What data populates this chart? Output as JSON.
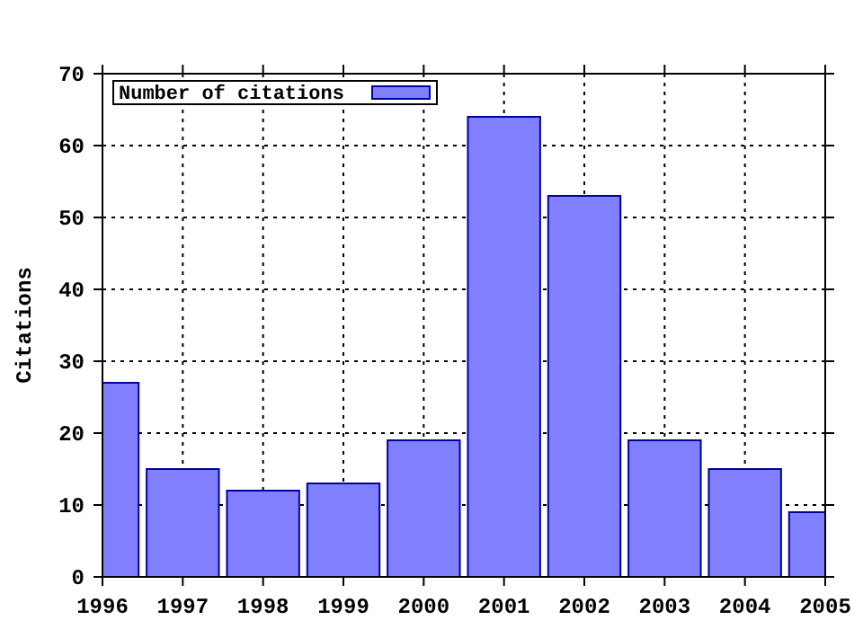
{
  "chart_data": {
    "type": "bar",
    "ylabel": "Citations",
    "x": [
      1996,
      1997,
      1998,
      1999,
      2000,
      2001,
      2002,
      2003,
      2004,
      2005
    ],
    "series": [
      {
        "name": "Number of citations",
        "color": "#8080ff",
        "values": [
          27,
          15,
          12,
          13,
          19,
          64,
          53,
          19,
          15,
          9
        ]
      }
    ],
    "xlim": [
      1996,
      2005
    ],
    "xticks": [
      1996,
      1997,
      1998,
      1999,
      2000,
      2001,
      2002,
      2003,
      2004,
      2005
    ],
    "ylim": [
      0,
      70
    ],
    "yticks": [
      0,
      10,
      20,
      30,
      40,
      50,
      60,
      70
    ],
    "grid": true,
    "legend": "top left"
  }
}
